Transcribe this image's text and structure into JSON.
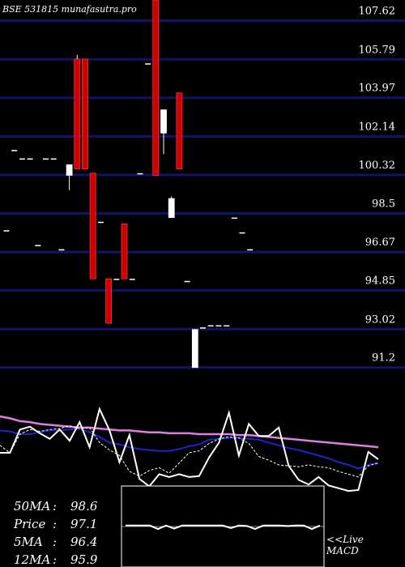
{
  "chart_data": {
    "type": "candlestick",
    "title": "BSE 531815 munafasutra.pro",
    "yticks": [
      107.62,
      105.79,
      103.97,
      102.14,
      100.32,
      98.5,
      96.67,
      94.85,
      93.02,
      91.2
    ],
    "ylim": [
      90.0,
      108.6
    ],
    "candles": [
      {
        "o": 97.7,
        "c": 97.7,
        "h": 97.7,
        "l": 97.7
      },
      {
        "o": 101.5,
        "c": 101.5,
        "h": 101.5,
        "l": 101.5
      },
      {
        "o": 101.1,
        "c": 101.1,
        "h": 101.1,
        "l": 101.1
      },
      {
        "o": 101.1,
        "c": 101.1,
        "h": 101.1,
        "l": 101.1
      },
      {
        "o": 97.0,
        "c": 97.0,
        "h": 97.0,
        "l": 97.0
      },
      {
        "o": 101.1,
        "c": 101.1,
        "h": 101.1,
        "l": 101.1
      },
      {
        "o": 101.1,
        "c": 101.1,
        "h": 101.1,
        "l": 101.1
      },
      {
        "o": 96.8,
        "c": 96.8,
        "h": 96.8,
        "l": 96.8
      },
      {
        "o": 100.3,
        "c": 100.8,
        "h": 100.8,
        "l": 99.6
      },
      {
        "o": 105.8,
        "c": 100.6,
        "h": 106.0,
        "l": 100.6
      },
      {
        "o": 105.8,
        "c": 100.6,
        "h": 105.8,
        "l": 100.6
      },
      {
        "o": 100.4,
        "c": 95.4,
        "h": 100.4,
        "l": 95.4
      },
      {
        "o": 98.1,
        "c": 98.1,
        "h": 98.1,
        "l": 98.1
      },
      {
        "o": 95.4,
        "c": 93.3,
        "h": 95.4,
        "l": 93.3
      },
      {
        "o": 95.4,
        "c": 95.4,
        "h": 95.4,
        "l": 95.4
      },
      {
        "o": 98.0,
        "c": 95.4,
        "h": 98.0,
        "l": 95.4
      },
      {
        "o": 95.4,
        "c": 95.4,
        "h": 95.4,
        "l": 95.4
      },
      {
        "o": 100.4,
        "c": 100.4,
        "h": 100.4,
        "l": 100.4
      },
      {
        "o": 105.6,
        "c": 105.6,
        "h": 105.6,
        "l": 105.6
      },
      {
        "o": 108.6,
        "c": 100.3,
        "h": 108.6,
        "l": 100.3
      },
      {
        "o": 102.3,
        "c": 103.4,
        "h": 103.4,
        "l": 101.3
      },
      {
        "o": 98.3,
        "c": 99.2,
        "h": 99.3,
        "l": 98.3
      },
      {
        "o": 104.2,
        "c": 100.6,
        "h": 104.2,
        "l": 100.6
      },
      {
        "o": 95.3,
        "c": 95.3,
        "h": 95.3,
        "l": 95.3
      },
      {
        "o": 91.2,
        "c": 93.0,
        "h": 93.0,
        "l": 91.2
      },
      {
        "o": 93.1,
        "c": 93.1,
        "h": 93.1,
        "l": 93.1
      },
      {
        "o": 93.2,
        "c": 93.2,
        "h": 93.2,
        "l": 93.2
      },
      {
        "o": 93.2,
        "c": 93.2,
        "h": 93.2,
        "l": 93.2
      },
      {
        "o": 93.2,
        "c": 93.2,
        "h": 93.2,
        "l": 93.2
      },
      {
        "o": 98.3,
        "c": 98.3,
        "h": 98.3,
        "l": 98.3
      },
      {
        "o": 97.6,
        "c": 97.6,
        "h": 97.6,
        "l": 97.6
      },
      {
        "o": 96.8,
        "c": 96.8,
        "h": 96.8,
        "l": 96.8
      }
    ],
    "indicator_lines": [
      {
        "color": "#e07ee0",
        "values": [
          95.9,
          95.7,
          95.4,
          95.3,
          95.1,
          95.0,
          94.9,
          94.8,
          94.7,
          94.7,
          94.6,
          94.5,
          94.4,
          94.4,
          94.3,
          94.2,
          94.2,
          94.1,
          94.1,
          94.1,
          94.0,
          94.0,
          94.0,
          94.0,
          93.9,
          93.9,
          93.8,
          93.7,
          93.6,
          93.5,
          93.4,
          93.3,
          93.2,
          93.1,
          93.0,
          92.9,
          92.8,
          92.7,
          92.6
        ]
      },
      {
        "color": "#2222cc",
        "values": [
          94.4,
          94.3,
          94.0,
          94.0,
          94.2,
          94.4,
          94.4,
          94.5,
          94.6,
          94.2,
          93.7,
          93.1,
          92.9,
          92.6,
          92.4,
          92.3,
          92.2,
          92.2,
          92.4,
          92.7,
          92.9,
          93.4,
          93.5,
          93.6,
          93.6,
          93.5,
          93.4,
          93.1,
          92.8,
          92.5,
          92.3,
          92.0,
          91.7,
          91.4,
          91.0,
          90.7,
          90.3,
          90.7,
          90.9
        ]
      },
      {
        "color": "#ffffff",
        "dashed": true,
        "values": [
          92.8,
          92.0,
          94.0,
          94.5,
          94.3,
          94.5,
          94.6,
          94.9,
          94.6,
          94.7,
          93.1,
          92.3,
          91.7,
          90.0,
          89.5,
          90.1,
          90.4,
          89.8,
          90.9,
          92.0,
          92.2,
          93.0,
          93.5,
          93.7,
          93.6,
          93.0,
          91.6,
          91.2,
          90.7,
          90.6,
          90.5,
          90.7,
          90.5,
          90.4,
          90.0,
          89.7,
          89.4,
          90.6,
          90.9
        ]
      },
      {
        "color": "#ffffff",
        "values": [
          92.0,
          92.0,
          94.5,
          94.8,
          94.1,
          93.5,
          94.5,
          93.3,
          95.3,
          92.6,
          96.7,
          94.4,
          91.0,
          93.9,
          89.2,
          88.4,
          89.7,
          89.4,
          89.7,
          89.4,
          89.5,
          91.5,
          93.1,
          96.3,
          91.7,
          95.1,
          93.8,
          93.8,
          94.7,
          90.6,
          89.1,
          88.6,
          89.4,
          88.5,
          88.2,
          87.9,
          88.0,
          92.1,
          91.3
        ]
      }
    ],
    "indicator_ylim": [
      88.0,
      98.0
    ],
    "macd_values": [
      0.2,
      0.2,
      0.2,
      0.2,
      -0.5,
      0.2,
      -0.4,
      0.2,
      0.2,
      0.2,
      0.2,
      0.2,
      0.2,
      -0.3,
      0.2,
      0.1,
      -0.5,
      0.2,
      0.2,
      0.2,
      0.1,
      0.2,
      0.2,
      -0.5,
      0.2
    ],
    "macd_ylim": [
      -8.0,
      8.0
    ],
    "stats": [
      {
        "label": "50MA",
        "value": "98.6"
      },
      {
        "label": "Price",
        "value": "97.1"
      },
      {
        "label": "5MA",
        "value": "96.4"
      },
      {
        "label": "12MA",
        "value": "95.9"
      }
    ],
    "macd_label_1": "<<Live",
    "macd_label_2": "MACD"
  }
}
